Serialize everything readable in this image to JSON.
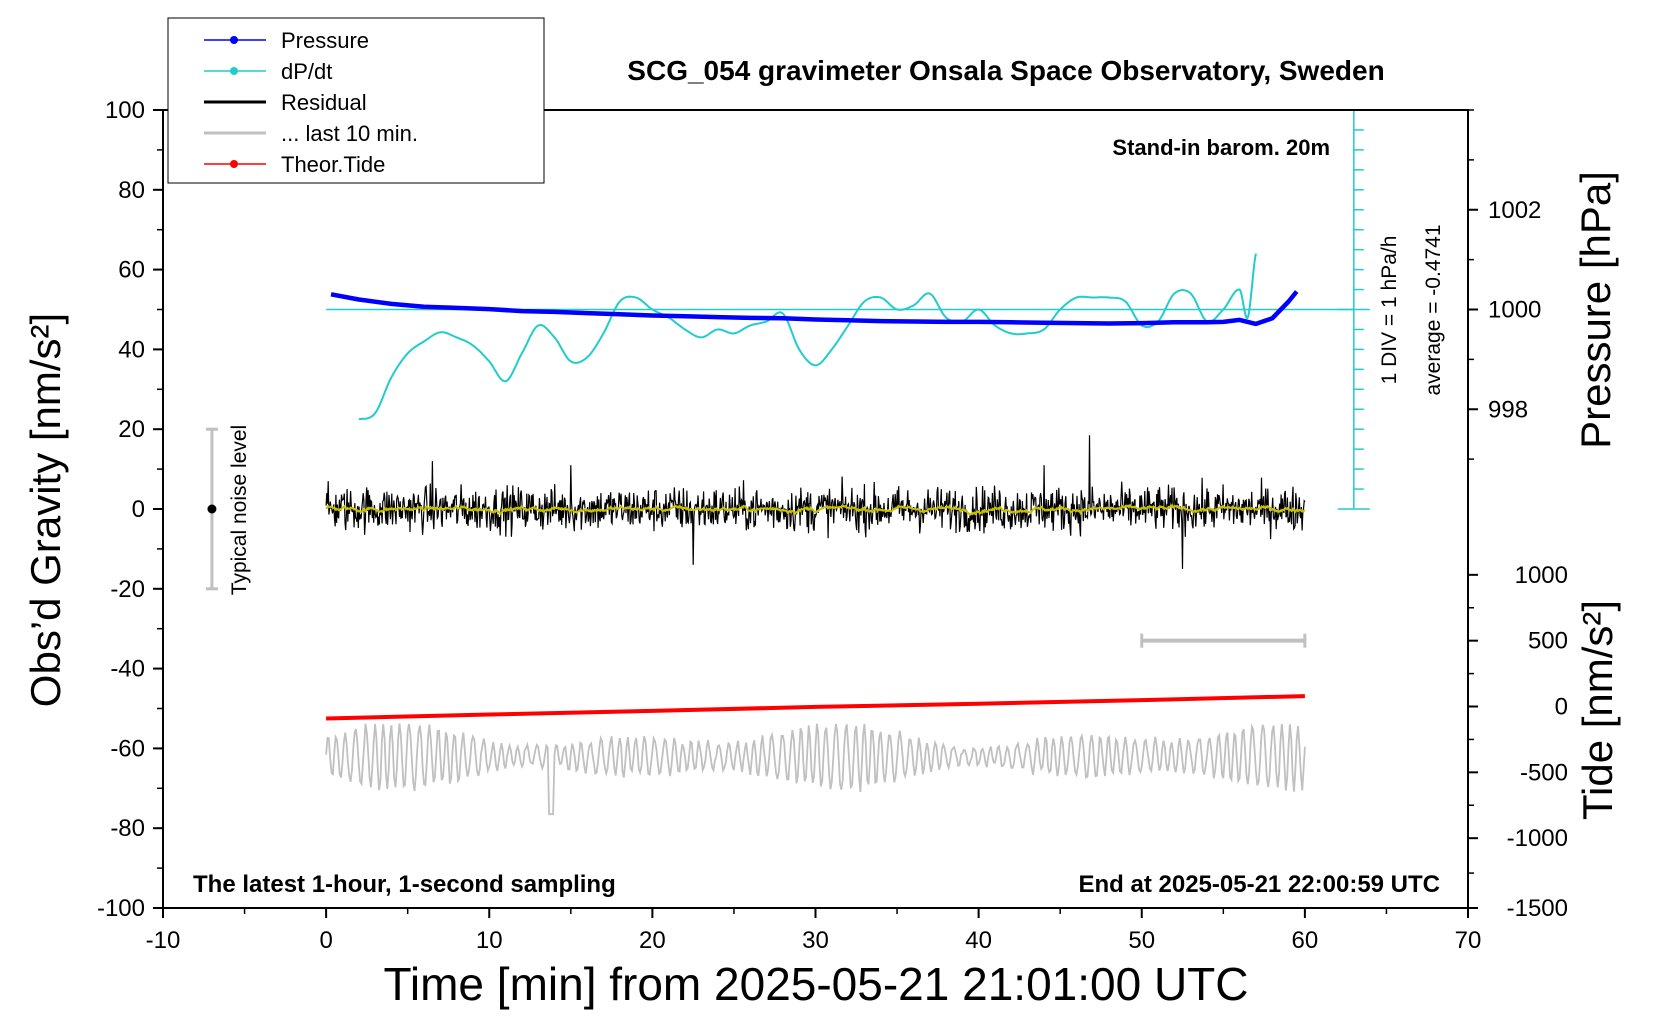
{
  "chart_data": {
    "type": "line",
    "title": "SCG_054 gravimeter Onsala Space Observatory, Sweden",
    "xlabel": "Time [min] from 2025-05-21 21:01:00 UTC",
    "ylabel_left": "Obs’d Gravity [nm/s²]",
    "ylabel_right_pressure": "Pressure [hPa]",
    "ylabel_right_tide": "Tide [nm/s²]",
    "xlim": [
      -10,
      70
    ],
    "ylim": [
      -100,
      100
    ],
    "x_ticks": [
      -10,
      0,
      10,
      20,
      30,
      40,
      50,
      60,
      70
    ],
    "x_tick_labels": [
      "-10",
      "0",
      "10",
      "20",
      "30",
      "40",
      "50",
      "60",
      "70"
    ],
    "y_ticks": [
      100,
      80,
      60,
      40,
      20,
      0,
      -20,
      -40,
      -60,
      -80,
      -100
    ],
    "y_tick_labels": [
      "100",
      "80",
      "60",
      "40",
      "20",
      "0",
      "-20",
      "-40",
      "-60",
      "-80",
      "-100"
    ],
    "pressure_axis": {
      "ticks": [
        1002,
        1000,
        998
      ],
      "tick_labels": [
        "1002",
        "1000",
        "998"
      ],
      "gravity_equivalent": [
        75,
        50,
        25
      ]
    },
    "tide_axis": {
      "ticks": [
        1000,
        500,
        0,
        -500,
        -1000,
        -1500
      ],
      "tick_labels": [
        "1000",
        "500",
        "0",
        "-500",
        "-1000",
        "-1500"
      ],
      "gravity_equivalent": [
        -16.5,
        -33,
        -49.5,
        -66,
        -82.5,
        -100
      ]
    },
    "legend": {
      "placement": "top-left",
      "entries": [
        {
          "label": "Pressure",
          "color": "#0000ff",
          "marker": true
        },
        {
          "label": "dP/dt",
          "color": "#22cccc",
          "marker": true
        },
        {
          "label": "Residual",
          "color": "#000000",
          "marker": false
        },
        {
          "label": "... last 10 min.",
          "color": "#c0c0c0",
          "marker": false
        },
        {
          "label": "Theor.Tide",
          "color": "#ff0000",
          "marker": true
        }
      ]
    },
    "annotations": {
      "barometer": "Stand-in barom. 20m",
      "dpdt_scale": "1 DIV = 1 hPa/h",
      "dpdt_average": "average = -0.4741",
      "noise_level": "Typical noise level",
      "sampling": "The latest 1-hour, 1-second sampling",
      "end_time": "End at 2025-05-21 22:00:59 UTC"
    },
    "noise_bar": {
      "x": -7,
      "y_min": -20,
      "y_max": 20,
      "center": 0
    },
    "window_bar": {
      "x_start": 50,
      "x_end": 60,
      "y": -33
    },
    "dpdt_reference": {
      "x_start": 0,
      "x_end": 63,
      "y": 50
    },
    "dpdt_scale_axis": {
      "x": 63,
      "y_min": 0,
      "y_max": 100,
      "div": 5
    },
    "series": [
      {
        "name": "Pressure",
        "color": "#0000ff",
        "x": [
          0.3,
          2,
          4,
          6,
          8,
          10,
          12,
          14,
          16,
          18,
          20,
          22,
          24,
          26,
          28,
          30,
          32,
          34,
          36,
          38,
          40,
          42,
          44,
          46,
          48,
          50,
          52,
          54,
          55,
          56,
          57,
          58,
          59,
          59.5
        ],
        "y": [
          53.8,
          52.5,
          51.4,
          50.7,
          50.4,
          50.1,
          49.6,
          49.4,
          49.1,
          48.8,
          48.5,
          48.3,
          48.1,
          47.9,
          47.8,
          47.5,
          47.3,
          47.1,
          47.0,
          46.9,
          46.9,
          46.8,
          46.7,
          46.6,
          46.5,
          46.6,
          46.8,
          46.8,
          46.9,
          47.4,
          46.4,
          47.8,
          52.0,
          54.5
        ]
      },
      {
        "name": "dP/dt",
        "color": "#22cccc",
        "x": [
          2,
          3,
          4,
          5,
          6,
          7,
          8,
          9,
          10,
          11,
          12,
          13,
          14,
          15,
          16,
          17,
          18,
          19,
          20,
          21,
          22,
          23,
          24,
          25,
          26,
          27,
          28,
          29,
          30,
          31,
          32,
          33,
          34,
          35,
          36,
          37,
          38,
          39,
          40,
          41,
          42,
          43,
          44,
          45,
          46,
          47,
          48,
          49,
          50,
          51,
          52,
          53,
          54,
          55,
          56,
          56.5,
          57
        ],
        "y": [
          22.5,
          24,
          33,
          39,
          42,
          44.3,
          43,
          41,
          37,
          32,
          39,
          46,
          43,
          37,
          38,
          44,
          52,
          53,
          50,
          48,
          45,
          43,
          45,
          44,
          46,
          47,
          49,
          40,
          36,
          40,
          46,
          52,
          53,
          50,
          51,
          54,
          48,
          47,
          50,
          46,
          44,
          44,
          45,
          50,
          53,
          53,
          53,
          52,
          46,
          47,
          54,
          54,
          47,
          50,
          55,
          48,
          64
        ]
      },
      {
        "name": "Theor.Tide",
        "color": "#ff0000",
        "x": [
          0,
          10,
          20,
          30,
          40,
          50,
          60
        ],
        "y": [
          -52.5,
          -51.5,
          -50.6,
          -49.6,
          -48.8,
          -47.9,
          -46.9
        ]
      }
    ],
    "residual": {
      "x_range": [
        0,
        60
      ],
      "typical_amplitude": 6,
      "notable_peaks": [
        {
          "x": 6.5,
          "y": 12
        },
        {
          "x": 15,
          "y": 11
        },
        {
          "x": 22.5,
          "y": -14
        },
        {
          "x": 44,
          "y": 11
        },
        {
          "x": 46.8,
          "y": 18.5
        },
        {
          "x": 52.5,
          "y": -15
        }
      ]
    },
    "last_10_min": {
      "x_range": [
        0,
        60
      ],
      "baseline": -62,
      "typical_amplitude": 6,
      "min": {
        "x": 13.8,
        "y": -76.5
      }
    }
  }
}
